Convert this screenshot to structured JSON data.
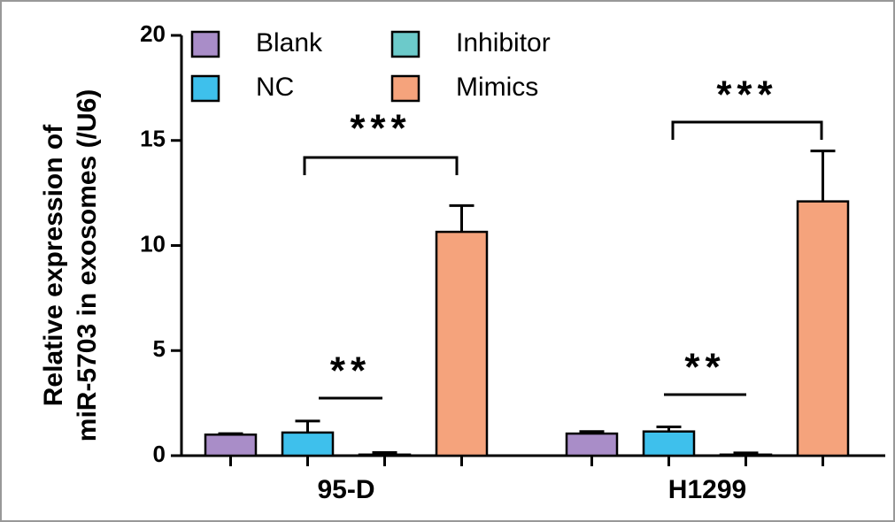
{
  "chart_data": {
    "type": "bar",
    "ylabel": [
      "Relative expression of",
      "miR-5703 in exosomes (/U6)"
    ],
    "categories": [
      "95-D",
      "H1299"
    ],
    "series": [
      {
        "name": "Blank",
        "color": "#a98dc8",
        "values": [
          1.0,
          1.05
        ],
        "errors": [
          0.05,
          0.1
        ]
      },
      {
        "name": "NC",
        "color": "#3ec0ec",
        "values": [
          1.1,
          1.15
        ],
        "errors": [
          0.55,
          0.22
        ]
      },
      {
        "name": "Inhibitor",
        "color": "#6ccaca",
        "values": [
          0.05,
          0.05
        ],
        "errors": [
          0.1,
          0.08
        ]
      },
      {
        "name": "Mimics",
        "color": "#f5a37c",
        "values": [
          10.65,
          12.1
        ],
        "errors": [
          1.25,
          2.4
        ]
      }
    ],
    "annotations": [
      "***",
      "**",
      "***",
      "**"
    ],
    "ylim": [
      0,
      20
    ],
    "yticks": [
      0,
      5,
      10,
      15,
      20
    ]
  }
}
